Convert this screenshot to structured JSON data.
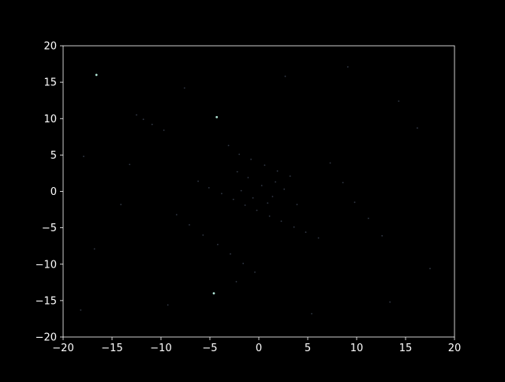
{
  "chart_data": {
    "type": "scatter",
    "title": "",
    "xlabel": "",
    "ylabel": "",
    "xlim": [
      -20,
      20
    ],
    "ylim": [
      -20,
      20
    ],
    "xticks": [
      -20,
      -15,
      -10,
      -5,
      0,
      5,
      10,
      15,
      20
    ],
    "yticks": [
      -20,
      -15,
      -10,
      -5,
      0,
      5,
      10,
      15,
      20
    ],
    "xtick_labels": [
      "−20",
      "−15",
      "−10",
      "−5",
      "0",
      "5",
      "10",
      "15",
      "20"
    ],
    "ytick_labels": [
      "−20",
      "−15",
      "−10",
      "−5",
      "0",
      "5",
      "10",
      "15",
      "20"
    ],
    "grid": false,
    "legend": "none",
    "background_color": "#000000",
    "point_color": "#8fa3c8",
    "highlight_color": "#b8f0e0",
    "series": [
      {
        "values": [
          [
            -16.6,
            16.0
          ],
          [
            -4.3,
            10.2
          ],
          [
            -4.6,
            -14.0
          ],
          [
            -12.5,
            10.5
          ],
          [
            -11.8,
            9.9
          ],
          [
            -10.9,
            9.2
          ],
          [
            -9.7,
            8.4
          ],
          [
            -3.1,
            6.3
          ],
          [
            -2.0,
            5.1
          ],
          [
            -0.8,
            4.4
          ],
          [
            0.6,
            3.6
          ],
          [
            1.9,
            2.8
          ],
          [
            3.2,
            2.1
          ],
          [
            -6.2,
            1.4
          ],
          [
            -5.1,
            0.5
          ],
          [
            -3.8,
            -0.3
          ],
          [
            -2.6,
            -1.1
          ],
          [
            -1.4,
            -1.9
          ],
          [
            -0.2,
            -2.6
          ],
          [
            1.1,
            -3.4
          ],
          [
            2.3,
            -4.1
          ],
          [
            3.6,
            -4.9
          ],
          [
            4.8,
            -5.6
          ],
          [
            6.1,
            -6.4
          ],
          [
            -8.4,
            -3.2
          ],
          [
            -7.1,
            -4.6
          ],
          [
            -5.7,
            -6.0
          ],
          [
            -4.2,
            -7.3
          ],
          [
            -2.9,
            -8.6
          ],
          [
            -1.6,
            -9.9
          ],
          [
            -0.4,
            -11.1
          ],
          [
            -2.3,
            -12.4
          ],
          [
            7.3,
            3.9
          ],
          [
            8.6,
            1.2
          ],
          [
            9.8,
            -1.5
          ],
          [
            11.2,
            -3.7
          ],
          [
            12.6,
            -6.1
          ],
          [
            -14.1,
            -1.8
          ],
          [
            -13.2,
            3.7
          ],
          [
            -16.8,
            -7.9
          ],
          [
            -17.9,
            4.8
          ],
          [
            14.3,
            12.4
          ],
          [
            16.2,
            8.7
          ],
          [
            17.5,
            -10.6
          ],
          [
            13.4,
            -15.2
          ],
          [
            5.4,
            -16.8
          ],
          [
            -9.3,
            -15.6
          ],
          [
            -18.2,
            -16.3
          ],
          [
            -7.6,
            14.2
          ],
          [
            2.7,
            15.8
          ],
          [
            9.1,
            17.1
          ],
          [
            0.3,
            0.8
          ],
          [
            1.4,
            -0.7
          ],
          [
            -1.1,
            1.9
          ],
          [
            2.6,
            0.3
          ],
          [
            -0.6,
            -0.9
          ],
          [
            3.9,
            -1.8
          ],
          [
            -2.2,
            2.7
          ],
          [
            0.9,
            -1.6
          ],
          [
            -1.8,
            0.1
          ],
          [
            1.7,
            1.3
          ]
        ]
      }
    ]
  }
}
